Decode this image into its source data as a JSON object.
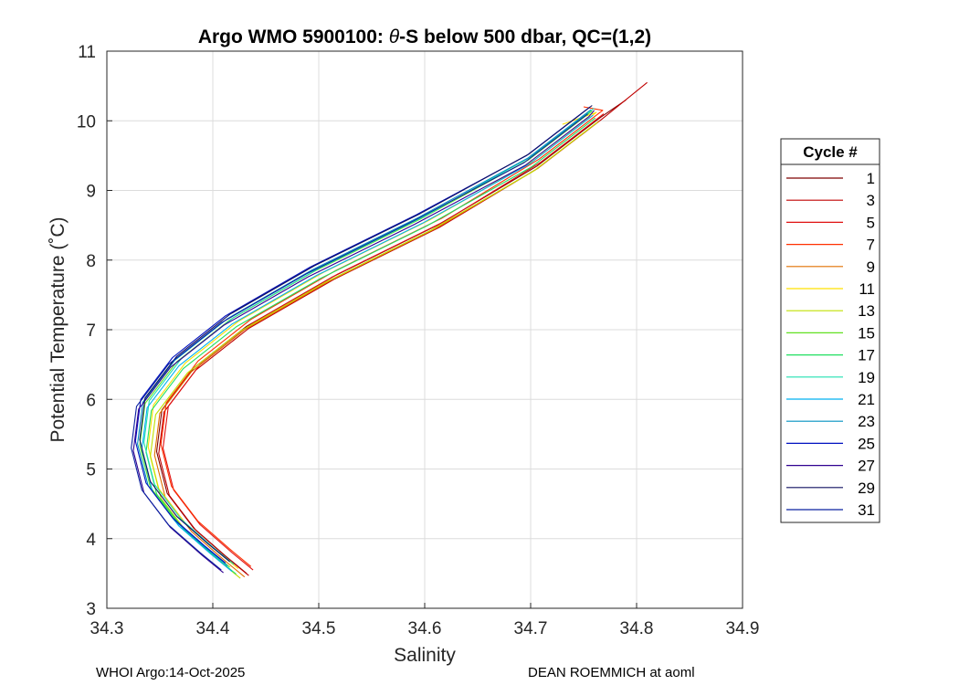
{
  "chart_data": {
    "type": "line",
    "title_prefix": "Argo WMO 5900100: ",
    "title_theta": "θ",
    "title_suffix": "-S below 500 dbar,  QC=(1,2)",
    "xlabel": "Salinity",
    "ylabel": "Potential Temperature (˚C)",
    "xlim": [
      34.3,
      34.9
    ],
    "ylim": [
      3,
      11
    ],
    "xticks": [
      "34.3",
      "34.4",
      "34.5",
      "34.6",
      "34.7",
      "34.8",
      "34.9"
    ],
    "yticks": [
      "3",
      "4",
      "5",
      "6",
      "7",
      "8",
      "9",
      "10",
      "11"
    ],
    "grid": true,
    "legend": {
      "title": "Cycle #",
      "placement": "outside-right",
      "entries": [
        {
          "label": "1",
          "color": "#7f0000"
        },
        {
          "label": "3",
          "color": "#c00000"
        },
        {
          "label": "5",
          "color": "#e01010"
        },
        {
          "label": "7",
          "color": "#ff3000"
        },
        {
          "label": "9",
          "color": "#e07000"
        },
        {
          "label": "11",
          "color": "#ffe000"
        },
        {
          "label": "13",
          "color": "#c0e000"
        },
        {
          "label": "15",
          "color": "#60e020"
        },
        {
          "label": "17",
          "color": "#20e060"
        },
        {
          "label": "19",
          "color": "#20e0b0"
        },
        {
          "label": "21",
          "color": "#00b0f0"
        },
        {
          "label": "23",
          "color": "#0090c0"
        },
        {
          "label": "25",
          "color": "#0010c0"
        },
        {
          "label": "27",
          "color": "#300090"
        },
        {
          "label": "29",
          "color": "#101060"
        },
        {
          "label": "31",
          "color": "#0a20a0"
        }
      ]
    },
    "base_profile": {
      "salinity": [
        34.42,
        34.4,
        34.37,
        34.345,
        34.335,
        34.34,
        34.37,
        34.42,
        34.5,
        34.6,
        34.7,
        34.76
      ],
      "theta": [
        3.55,
        3.8,
        4.2,
        4.7,
        5.3,
        5.9,
        6.5,
        7.1,
        7.8,
        8.55,
        9.4,
        10.1
      ]
    },
    "series": [
      {
        "name": "1",
        "salinity_offset": 0.012,
        "theta_offset": -0.05,
        "top_extension": [
          [
            34.79,
            10.3
          ]
        ]
      },
      {
        "name": "3",
        "salinity_offset": 0.014,
        "theta_offset": -0.08,
        "top_extension": [
          [
            34.81,
            10.55
          ]
        ]
      },
      {
        "name": "5",
        "salinity_offset": 0.018,
        "theta_offset": 0.0,
        "top_extension": []
      },
      {
        "name": "7",
        "salinity_offset": 0.016,
        "theta_offset": 0.05,
        "top_extension": [
          [
            34.75,
            10.2
          ]
        ]
      },
      {
        "name": "9",
        "salinity_offset": 0.01,
        "theta_offset": -0.1,
        "top_extension": []
      },
      {
        "name": "11",
        "salinity_offset": 0.004,
        "theta_offset": 0.02,
        "top_extension": [
          [
            34.73,
            9.95
          ]
        ]
      },
      {
        "name": "13",
        "salinity_offset": 0.006,
        "theta_offset": -0.12,
        "top_extension": []
      },
      {
        "name": "15",
        "salinity_offset": -0.004,
        "theta_offset": 0.04,
        "top_extension": []
      },
      {
        "name": "17",
        "salinity_offset": 0.002,
        "theta_offset": -0.06,
        "top_extension": []
      },
      {
        "name": "19",
        "salinity_offset": 0.0,
        "theta_offset": 0.08,
        "top_extension": []
      },
      {
        "name": "21",
        "salinity_offset": -0.002,
        "theta_offset": -0.02,
        "top_extension": []
      },
      {
        "name": "23",
        "salinity_offset": -0.006,
        "theta_offset": 0.06,
        "top_extension": []
      },
      {
        "name": "25",
        "salinity_offset": -0.008,
        "theta_offset": 0.1,
        "top_extension": []
      },
      {
        "name": "27",
        "salinity_offset": -0.01,
        "theta_offset": -0.04,
        "top_extension": [
          [
            34.76,
            10.15
          ]
        ]
      },
      {
        "name": "29",
        "salinity_offset": -0.004,
        "theta_offset": 0.12,
        "top_extension": []
      },
      {
        "name": "31",
        "salinity_offset": -0.012,
        "theta_offset": 0.0,
        "top_extension": []
      }
    ]
  },
  "footer": {
    "left": "WHOI Argo:14-Oct-2025",
    "right": "DEAN ROEMMICH at aoml"
  }
}
